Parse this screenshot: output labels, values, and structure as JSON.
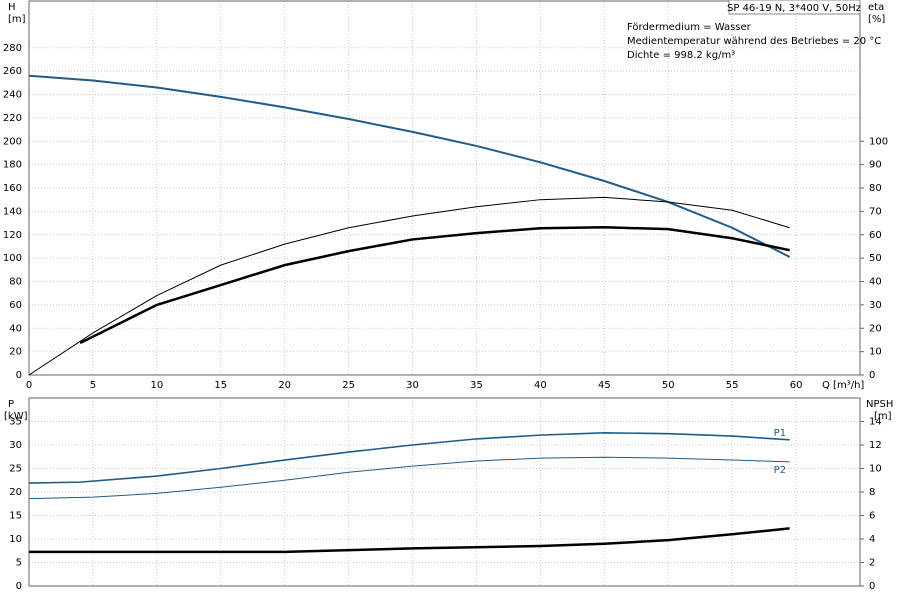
{
  "chart_data": [
    {
      "type": "line",
      "title": "SP 46-19 N, 3*400 V, 50Hz",
      "annotations": [
        "Fördermedium = Wasser",
        "Medientemperatur während des Betriebes = 20 °C",
        "Dichte = 998.2 kg/m³"
      ],
      "xlabel": "Q [m³/h]",
      "ylabel": "H",
      "yunit": "[m]",
      "y2label": "eta",
      "y2unit": "[%]",
      "xlim": [
        0,
        65
      ],
      "xticks": [
        0,
        5,
        10,
        15,
        20,
        25,
        30,
        35,
        40,
        45,
        50,
        55,
        60
      ],
      "ylim": [
        0,
        320
      ],
      "yticks": [
        0,
        20,
        40,
        60,
        80,
        100,
        120,
        140,
        160,
        180,
        200,
        220,
        240,
        260,
        280
      ],
      "y2lim": [
        0,
        160
      ],
      "y2ticks": [
        0,
        10,
        20,
        30,
        40,
        50,
        60,
        70,
        80,
        90,
        100
      ],
      "grid": true,
      "series": [
        {
          "color": "#1f5c8b",
          "axis": "y",
          "x": [
            0,
            5,
            10,
            15,
            20,
            25,
            30,
            35,
            40,
            45,
            50,
            55,
            59.5
          ],
          "values": [
            256,
            252,
            246,
            238,
            229,
            219,
            208,
            196,
            182,
            166,
            148,
            126,
            101
          ]
        },
        {
          "color": "#000000",
          "axis": "y2",
          "x": [
            0,
            5,
            10,
            15,
            20,
            25,
            30,
            35,
            40,
            45,
            50,
            55,
            59.5
          ],
          "values": [
            0,
            18,
            34,
            47,
            56,
            63,
            68,
            72,
            75,
            76,
            74,
            70.5,
            63
          ]
        },
        {
          "color": "#000000",
          "axis": "y2",
          "x": [
            4,
            10,
            15,
            20,
            25,
            30,
            35,
            40,
            45,
            50,
            55,
            59.5
          ],
          "values": [
            13.7,
            30,
            38.5,
            47,
            53,
            58,
            60.7,
            62.8,
            63.2,
            62.4,
            58.5,
            53.4
          ]
        }
      ]
    },
    {
      "type": "line",
      "ylabel": "P",
      "yunit": "[kW]",
      "y2label": "NPSH",
      "y2unit": "[m]",
      "xlim": [
        0,
        65
      ],
      "xticks": [
        0,
        5,
        10,
        15,
        20,
        25,
        30,
        35,
        40,
        45,
        50,
        55,
        60
      ],
      "ylim": [
        0,
        40
      ],
      "yticks": [
        0,
        5,
        10,
        15,
        20,
        25,
        30,
        35
      ],
      "y2lim": [
        0,
        16
      ],
      "y2ticks": [
        0,
        2,
        4,
        6,
        8,
        10,
        12,
        14
      ],
      "grid": true,
      "series": [
        {
          "name": "P1",
          "color": "#1f5c8b",
          "axis": "y",
          "x": [
            0,
            4,
            10,
            15,
            20,
            25,
            30,
            35,
            40,
            45,
            50,
            55,
            59.5
          ],
          "values": [
            21.9,
            22.1,
            23.4,
            25,
            26.8,
            28.5,
            30,
            31.3,
            32.1,
            32.6,
            32.4,
            31.9,
            31.1
          ]
        },
        {
          "name": "P2",
          "color": "#1f5c8b",
          "axis": "y",
          "x": [
            0,
            5,
            10,
            15,
            20,
            25,
            30,
            35,
            40,
            45,
            50,
            55,
            59.5
          ],
          "values": [
            18.6,
            18.9,
            19.7,
            21,
            22.5,
            24.2,
            25.5,
            26.6,
            27.2,
            27.4,
            27.2,
            26.8,
            26.4
          ]
        },
        {
          "color": "#000000",
          "axis": "y2",
          "x": [
            0,
            4,
            10,
            20,
            30,
            40,
            45,
            50,
            55,
            59.5
          ],
          "values": [
            2.9,
            2.9,
            2.9,
            2.9,
            3.2,
            3.4,
            3.6,
            3.9,
            4.4,
            4.9
          ]
        }
      ]
    }
  ]
}
